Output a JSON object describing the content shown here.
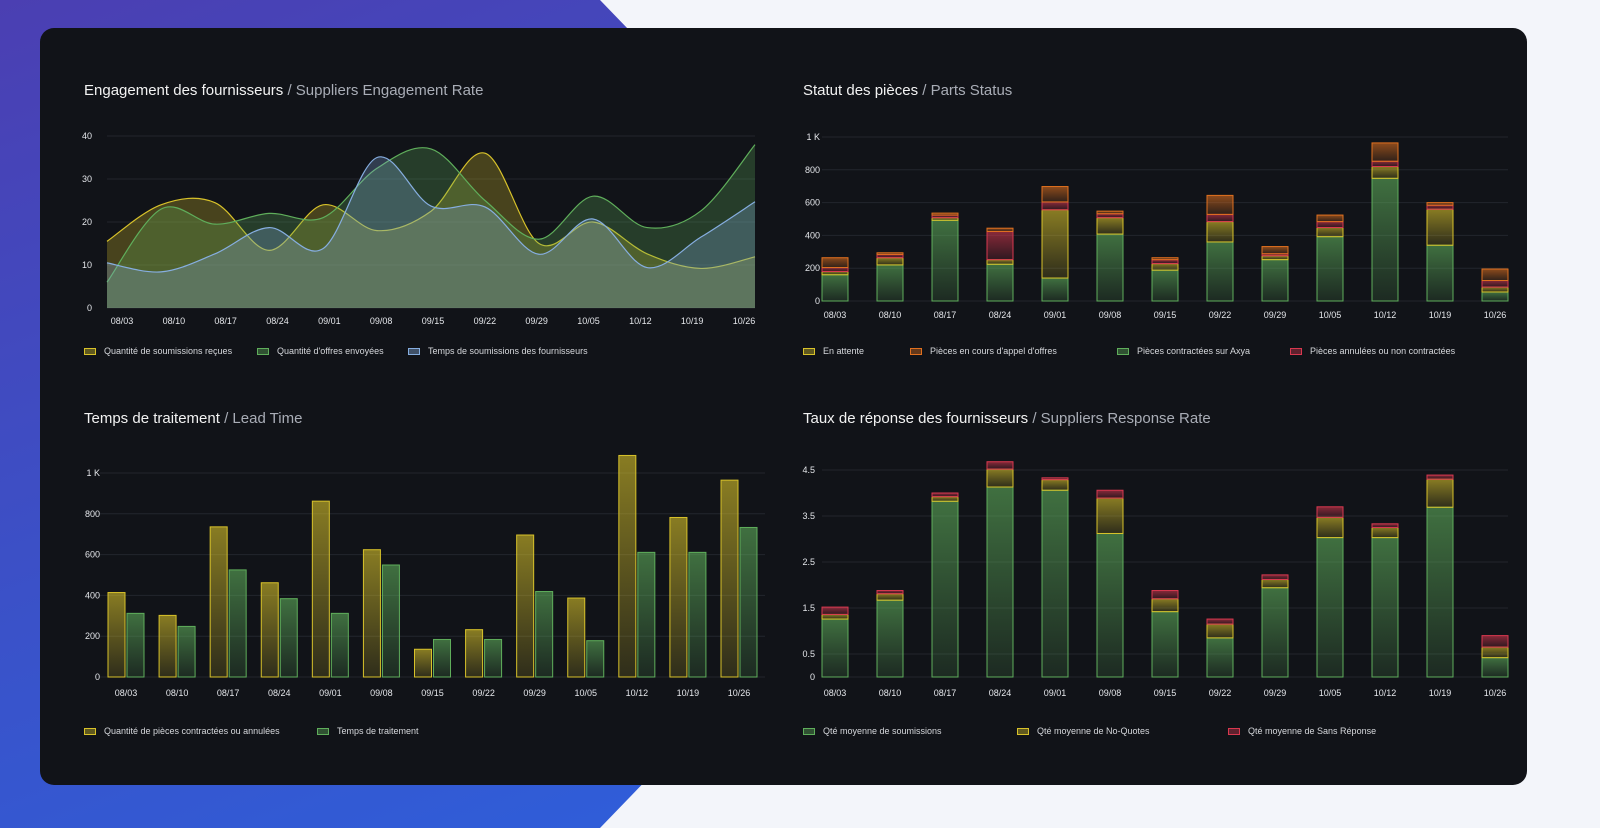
{
  "colors": {
    "yellow": "#d8c22a",
    "green": "#5fae5b",
    "blue": "#86aee0",
    "red": "#d8384f",
    "orange": "#e0701f",
    "card": "#111318"
  },
  "engagement": {
    "title": "Engagement des fournisseurs",
    "subtitle": "/ Suppliers Engagement Rate",
    "chart_data": {
      "type": "area",
      "categories": [
        "08/03",
        "08/10",
        "08/17",
        "08/24",
        "09/01",
        "09/08",
        "09/15",
        "09/22",
        "09/29",
        "10/05",
        "10/12",
        "10/19",
        "10/26"
      ],
      "ylim": [
        0,
        40
      ],
      "yticks": [
        "0",
        "10",
        "20",
        "30",
        "40"
      ],
      "grid": true,
      "legend": "bottom-left",
      "series": [
        {
          "name": "Quantité de soumissions reçues",
          "color": "yellow",
          "values": [
            15.5,
            24,
            24.5,
            13.4,
            24,
            18,
            22.5,
            36,
            15,
            20,
            12.6,
            9.2,
            11.9
          ]
        },
        {
          "name": "Quantité d'offres envoyées",
          "color": "green",
          "values": [
            6,
            23,
            19.5,
            22,
            21,
            32.5,
            37,
            25,
            16,
            26,
            18.7,
            22.6,
            38
          ]
        },
        {
          "name": "Temps de soumissions des fournisseurs",
          "color": "blue",
          "values": [
            10.5,
            8.4,
            12.6,
            18.7,
            13.8,
            35,
            23.7,
            23.5,
            12.5,
            20.7,
            9.4,
            16.5,
            24.7
          ]
        }
      ]
    }
  },
  "parts": {
    "title": "Statut des pièces",
    "subtitle": "/ Parts Status",
    "chart_data": {
      "type": "bar",
      "stacked": true,
      "categories": [
        "08/03",
        "08/10",
        "08/17",
        "08/24",
        "09/01",
        "09/08",
        "09/15",
        "09/22",
        "09/29",
        "10/05",
        "10/12",
        "10/19",
        "10/26"
      ],
      "ylim": [
        0,
        1000
      ],
      "yticks": [
        {
          "v": 0,
          "label": "0"
        },
        {
          "v": 200,
          "label": "200"
        },
        {
          "v": 400,
          "label": "400"
        },
        {
          "v": 600,
          "label": "600"
        },
        {
          "v": 800,
          "label": "800"
        },
        {
          "v": 1000,
          "label": "1 K"
        }
      ],
      "grid": true,
      "legend": "bottom",
      "legend_order": [
        1,
        3,
        0,
        2
      ],
      "series": [
        {
          "name": "Pièces contractées sur Axya",
          "color": "green",
          "values": [
            160,
            220,
            492,
            224,
            140,
            408,
            188,
            360,
            252,
            392,
            748,
            340,
            55
          ]
        },
        {
          "name": "En attente",
          "color": "yellow",
          "values": [
            20,
            44,
            16,
            28,
            416,
            100,
            40,
            124,
            24,
            56,
            72,
            220,
            30
          ]
        },
        {
          "name": "Pièces annulées ou non contractées",
          "color": "red",
          "values": [
            24,
            20,
            16,
            172,
            48,
            24,
            24,
            44,
            12,
            36,
            32,
            24,
            40
          ]
        },
        {
          "name": "Pièces en cours d'appel d'offres",
          "color": "orange",
          "values": [
            60,
            10,
            12,
            20,
            94,
            16,
            12,
            116,
            44,
            40,
            112,
            16,
            70
          ]
        }
      ]
    }
  },
  "leadtime": {
    "title": "Temps de traitement",
    "subtitle": "/ Lead Time",
    "chart_data": {
      "type": "bar",
      "stacked": false,
      "categories": [
        "08/03",
        "08/10",
        "08/17",
        "08/24",
        "09/01",
        "09/08",
        "09/15",
        "09/22",
        "09/29",
        "10/05",
        "10/12",
        "10/19",
        "10/26"
      ],
      "ylim": [
        0,
        1000
      ],
      "yticks": [
        {
          "v": 0,
          "label": "0"
        },
        {
          "v": 200,
          "label": "200"
        },
        {
          "v": 400,
          "label": "400"
        },
        {
          "v": 600,
          "label": "600"
        },
        {
          "v": 800,
          "label": "800"
        },
        {
          "v": 1000,
          "label": "1 K"
        }
      ],
      "grid": true,
      "legend": "bottom-left",
      "series": [
        {
          "name": "Quantité de pièces contractées ou annulées",
          "color": "yellow",
          "values": [
            414,
            302,
            736,
            462,
            862,
            624,
            136,
            232,
            696,
            387,
            1086,
            782,
            965
          ]
        },
        {
          "name": "Temps de traitement",
          "color": "green",
          "values": [
            312,
            248,
            525,
            384,
            312,
            549,
            184,
            184,
            419,
            178,
            611,
            611,
            733
          ]
        }
      ]
    }
  },
  "response": {
    "title": "Taux de réponse des fournisseurs",
    "subtitle": "/ Suppliers Response Rate",
    "chart_data": {
      "type": "bar",
      "stacked": true,
      "categories": [
        "08/03",
        "08/10",
        "08/17",
        "08/24",
        "09/01",
        "09/08",
        "09/15",
        "09/22",
        "09/29",
        "10/05",
        "10/12",
        "10/19",
        "10/26"
      ],
      "ylim": [
        0,
        4.5
      ],
      "yticks": [
        {
          "v": 0,
          "label": "0"
        },
        {
          "v": 0.5,
          "label": "0.5"
        },
        {
          "v": 1.5,
          "label": "1.5"
        },
        {
          "v": 2.5,
          "label": "2.5"
        },
        {
          "v": 3.5,
          "label": "3.5"
        },
        {
          "v": 4.5,
          "label": "4.5"
        }
      ],
      "grid": true,
      "legend": "bottom",
      "series": [
        {
          "name": "Qté moyenne de soumissions",
          "color": "green",
          "values": [
            1.26,
            1.67,
            3.82,
            4.13,
            4.06,
            3.12,
            1.42,
            0.85,
            1.94,
            3.03,
            3.03,
            3.69,
            0.42
          ]
        },
        {
          "name": "Qté moyenne de No-Quotes",
          "color": "yellow",
          "values": [
            0.1,
            0.14,
            0.1,
            0.39,
            0.23,
            0.77,
            0.28,
            0.3,
            0.18,
            0.44,
            0.22,
            0.61,
            0.23
          ]
        },
        {
          "name": "Qté moyenne de Sans Réponse",
          "color": "red",
          "values": [
            0.16,
            0.07,
            0.08,
            0.16,
            0.04,
            0.17,
            0.18,
            0.11,
            0.1,
            0.23,
            0.08,
            0.09,
            0.25
          ]
        }
      ]
    }
  }
}
